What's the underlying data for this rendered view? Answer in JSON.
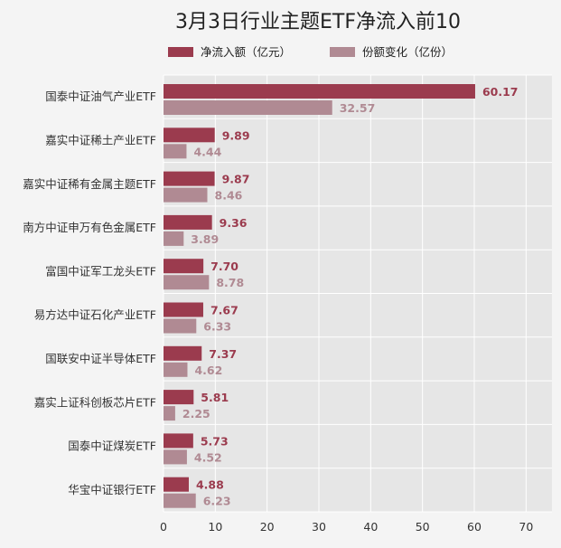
{
  "chart_data": {
    "type": "bar",
    "orientation": "horizontal",
    "title": "3月3日行业主题ETF净流入前10",
    "categories": [
      "国泰中证油气产业ETF",
      "嘉实中证稀土产业ETF",
      "嘉实中证稀有金属主题ETF",
      "南方中证申万有色金属ETF",
      "富国中证军工龙头ETF",
      "易方达中证石化产业ETF",
      "国联安中证半导体ETF",
      "嘉实上证科创板芯片ETF",
      "国泰中证煤炭ETF",
      "华宝中证银行ETF"
    ],
    "series": [
      {
        "name": "净流入额（亿元）",
        "color": "#9b3b4e",
        "values": [
          60.17,
          9.89,
          9.87,
          9.36,
          7.7,
          7.67,
          7.37,
          5.81,
          5.73,
          4.88
        ],
        "labels": [
          "60.17",
          "9.89",
          "9.87",
          "9.36",
          "7.70",
          "7.67",
          "7.37",
          "5.81",
          "5.73",
          "4.88"
        ]
      },
      {
        "name": "份额变化（亿份）",
        "color": "#b08a93",
        "values": [
          32.57,
          4.44,
          8.46,
          3.89,
          8.78,
          6.33,
          4.62,
          2.25,
          4.52,
          6.23
        ],
        "labels": [
          "32.57",
          "4.44",
          "8.46",
          "3.89",
          "8.78",
          "6.33",
          "4.62",
          "2.25",
          "4.52",
          "6.23"
        ]
      }
    ],
    "x_ticks": [
      0,
      10,
      20,
      30,
      40,
      50,
      60,
      70
    ],
    "xlim": [
      0,
      75
    ],
    "grid": true,
    "legend_position": "top"
  }
}
